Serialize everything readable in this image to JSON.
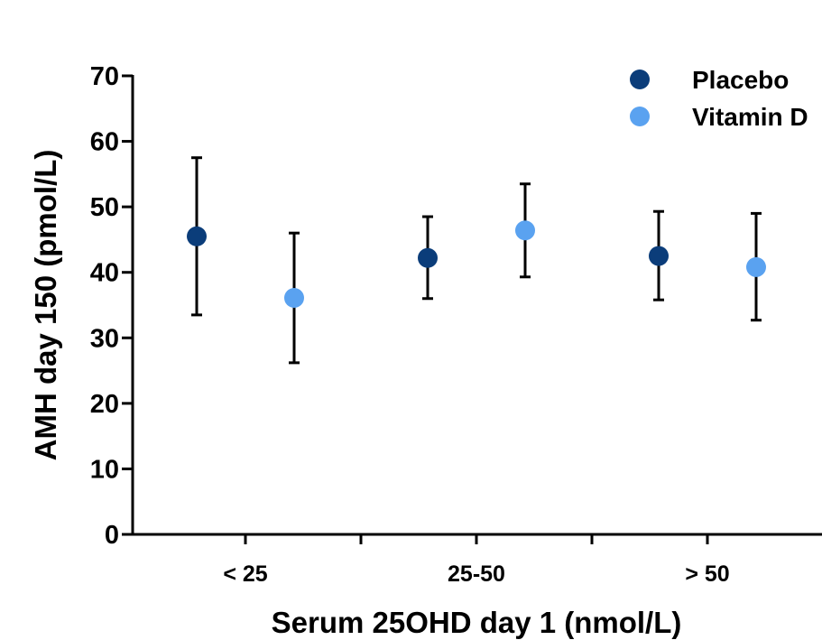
{
  "chart_data": {
    "type": "scatter",
    "categories": [
      "< 25",
      "25-50",
      "> 50"
    ],
    "series": [
      {
        "name": "Placebo",
        "color": "#0b3d7a",
        "means": [
          45.5,
          42.2,
          42.5
        ],
        "error_low": [
          33.5,
          36.0,
          35.8
        ],
        "error_high": [
          57.5,
          48.5,
          49.3
        ]
      },
      {
        "name": "Vitamin D",
        "color": "#5aa2f0",
        "means": [
          36.1,
          46.4,
          40.8
        ],
        "error_low": [
          26.2,
          39.3,
          32.7
        ],
        "error_high": [
          46.0,
          53.5,
          49.0
        ]
      }
    ],
    "xlabel": "Serum 25OHD day 1 (nmol/L)",
    "ylabel": "AMH day 150 (pmol/L)",
    "ylim": [
      0,
      70
    ],
    "yticks": [
      0,
      10,
      20,
      30,
      40,
      50,
      60,
      70
    ],
    "grid": false,
    "legend_position": "top-right"
  }
}
